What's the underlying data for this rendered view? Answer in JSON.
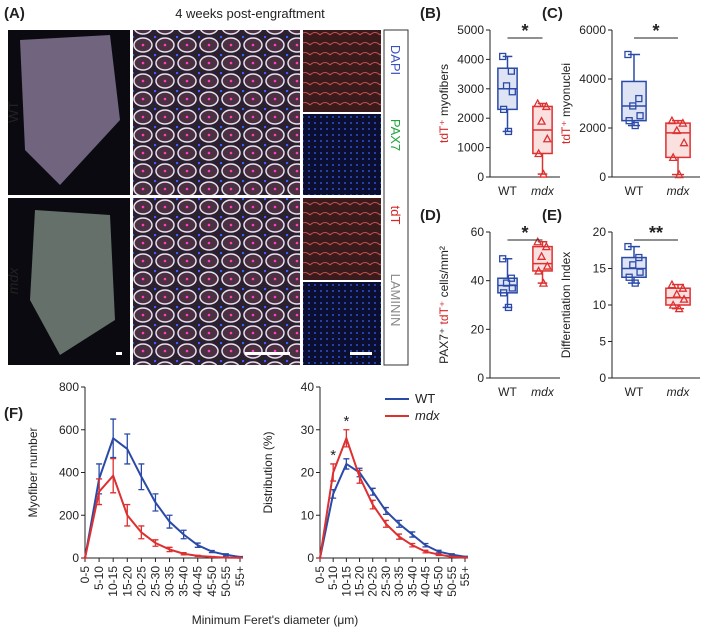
{
  "panel_A": {
    "label": "(A)",
    "title": "4 weeks post-engraftment",
    "rows": [
      "WT",
      "mdx"
    ],
    "channels": [
      {
        "name": "DAPI",
        "color": "#3a4fc0"
      },
      {
        "name": "PAX7",
        "color": "#1fa33a"
      },
      {
        "name": "tdT",
        "color": "#d62728"
      },
      {
        "name": "LAMININ",
        "color": "#888888"
      }
    ]
  },
  "panel_F": {
    "label": "(F)",
    "x_label": "Minimum Feret's diameter (μm)"
  },
  "chart_data": [
    {
      "type": "box",
      "panel": "(B)",
      "y_label_parts": [
        {
          "text": "tdT⁺",
          "color": "#d62728"
        },
        {
          "text": " myofibers"
        }
      ],
      "categories": [
        "WT",
        "mdx"
      ],
      "category_font_style": [
        "normal",
        "italic"
      ],
      "ylim": [
        0,
        5000
      ],
      "yticks": [
        0,
        1000,
        2000,
        3000,
        4000,
        5000
      ],
      "significance": "*",
      "series": [
        {
          "name": "WT",
          "color": "#2b4aa8",
          "fill": "#dfe4f5",
          "marker": "square",
          "min": 1550,
          "q1": 2300,
          "median": 3000,
          "q3": 3700,
          "max": 4100,
          "points": [
            4100,
            3600,
            3100,
            2900,
            2300,
            1550
          ]
        },
        {
          "name": "mdx",
          "color": "#dd3030",
          "fill": "#fbe0e0",
          "marker": "triangle",
          "min": 100,
          "q1": 800,
          "median": 1600,
          "q3": 2400,
          "max": 2500,
          "points": [
            2500,
            2400,
            1900,
            1300,
            800,
            100
          ]
        }
      ]
    },
    {
      "type": "box",
      "panel": "(C)",
      "y_label_parts": [
        {
          "text": "tdT⁺",
          "color": "#d62728"
        },
        {
          "text": " myonuclei"
        }
      ],
      "categories": [
        "WT",
        "mdx"
      ],
      "category_font_style": [
        "normal",
        "italic"
      ],
      "ylim": [
        0,
        6000
      ],
      "yticks": [
        0,
        2000,
        4000,
        6000
      ],
      "significance": "*",
      "series": [
        {
          "name": "WT",
          "color": "#2b4aa8",
          "fill": "#dfe4f5",
          "marker": "square",
          "min": 2100,
          "q1": 2300,
          "median": 2900,
          "q3": 3900,
          "max": 5000,
          "points": [
            5000,
            3200,
            2900,
            2500,
            2300,
            2100
          ]
        },
        {
          "name": "mdx",
          "color": "#dd3030",
          "fill": "#fbe0e0",
          "marker": "triangle",
          "min": 100,
          "q1": 800,
          "median": 1800,
          "q3": 2200,
          "max": 2300,
          "points": [
            2300,
            2200,
            1900,
            1400,
            800,
            100
          ]
        }
      ]
    },
    {
      "type": "box",
      "panel": "(D)",
      "y_label_parts": [
        {
          "text": "PAX7⁺ "
        },
        {
          "text": "tdT⁺",
          "color": "#d62728"
        },
        {
          "text": " cells/mm²"
        }
      ],
      "categories": [
        "WT",
        "mdx"
      ],
      "category_font_style": [
        "normal",
        "italic"
      ],
      "ylim": [
        0,
        60
      ],
      "yticks": [
        0,
        20,
        40,
        60
      ],
      "significance": "*",
      "series": [
        {
          "name": "WT",
          "color": "#2b4aa8",
          "fill": "#dfe4f5",
          "marker": "square",
          "min": 29,
          "q1": 35,
          "median": 38,
          "q3": 41,
          "max": 49,
          "points": [
            49,
            41,
            39,
            37,
            35,
            29
          ]
        },
        {
          "name": "mdx",
          "color": "#dd3030",
          "fill": "#fbe0e0",
          "marker": "triangle",
          "min": 39,
          "q1": 44,
          "median": 47,
          "q3": 54,
          "max": 56,
          "points": [
            56,
            54,
            50,
            46,
            44,
            39
          ]
        }
      ]
    },
    {
      "type": "box",
      "panel": "(E)",
      "y_label_parts": [
        {
          "text": "Differentiation Index"
        }
      ],
      "categories": [
        "WT",
        "mdx"
      ],
      "category_font_style": [
        "normal",
        "italic"
      ],
      "ylim": [
        0,
        20
      ],
      "yticks": [
        0,
        5,
        10,
        15,
        20
      ],
      "significance": "**",
      "series": [
        {
          "name": "WT",
          "color": "#2b4aa8",
          "fill": "#dfe4f5",
          "marker": "square",
          "min": 13,
          "q1": 13.8,
          "median": 15,
          "q3": 16.5,
          "max": 18,
          "points": [
            18,
            16.5,
            15.5,
            14.5,
            13.8,
            13
          ]
        },
        {
          "name": "mdx",
          "color": "#dd3030",
          "fill": "#fbe0e0",
          "marker": "triangle",
          "min": 9.5,
          "q1": 10,
          "median": 11,
          "q3": 12.3,
          "max": 12.8,
          "points": [
            12.8,
            12.3,
            11.5,
            10.8,
            10,
            9.5
          ]
        }
      ]
    },
    {
      "type": "line",
      "y_label": "Myofiber number",
      "categories": [
        "0-5",
        "5-10",
        "10-15",
        "15-20",
        "20-25",
        "25-30",
        "30-35",
        "35-40",
        "40-45",
        "45-50",
        "50-55",
        "55+"
      ],
      "ylim": [
        0,
        800
      ],
      "yticks": [
        0,
        200,
        400,
        600,
        800
      ],
      "series": [
        {
          "name": "WT",
          "color": "#2b4aa8",
          "values": [
            0,
            370,
            560,
            510,
            380,
            260,
            170,
            110,
            60,
            30,
            15,
            5
          ],
          "errors": [
            0,
            70,
            90,
            70,
            60,
            40,
            30,
            20,
            10,
            5,
            5,
            2
          ]
        },
        {
          "name": "mdx",
          "color": "#dd3030",
          "values": [
            0,
            310,
            385,
            200,
            120,
            70,
            40,
            20,
            10,
            5,
            2,
            1
          ],
          "errors": [
            0,
            60,
            80,
            50,
            30,
            15,
            10,
            5,
            3,
            2,
            1,
            1
          ]
        }
      ]
    },
    {
      "type": "line",
      "y_label": "Distribution (%)",
      "categories": [
        "0-5",
        "5-10",
        "10-15",
        "15-20",
        "20-25",
        "25-30",
        "30-35",
        "35-40",
        "40-45",
        "45-50",
        "50-55",
        "55+"
      ],
      "ylim": [
        0,
        40
      ],
      "yticks": [
        0,
        10,
        20,
        30,
        40
      ],
      "legend": "top-right",
      "annotations": [
        {
          "text": "*",
          "category": 1
        },
        {
          "text": "*",
          "category": 2
        }
      ],
      "series": [
        {
          "name": "WT",
          "color": "#2b4aa8",
          "values": [
            0,
            15,
            22,
            20,
            15.5,
            11,
            8,
            5.5,
            3,
            1.5,
            0.8,
            0.3
          ],
          "errors": [
            0,
            1,
            1.2,
            1,
            0.8,
            0.8,
            0.8,
            0.6,
            0.4,
            0.3,
            0.2,
            0.1
          ]
        },
        {
          "name": "mdx",
          "color": "#dd3030",
          "font_style": "italic",
          "values": [
            0,
            20,
            28,
            19,
            12.5,
            8,
            5,
            3,
            1.5,
            0.8,
            0.3,
            0.1
          ],
          "errors": [
            0,
            2,
            2,
            1.5,
            1,
            0.8,
            0.6,
            0.4,
            0.3,
            0.2,
            0.1,
            0.1
          ]
        }
      ]
    }
  ]
}
